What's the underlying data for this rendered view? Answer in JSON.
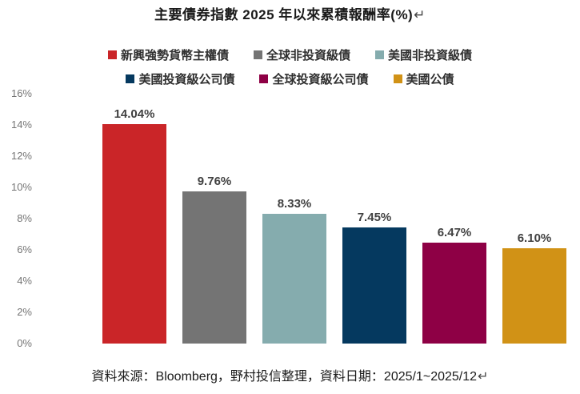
{
  "title": "主要債券指數 2025 年以來累積報酬率(%)",
  "title_return_mark": "↵",
  "footer": "資料來源：Bloomberg，野村投信整理，資料日期：2025/1~2025/12",
  "footer_return_mark": "↵",
  "chart_data": {
    "type": "bar",
    "title": "主要債券指數 2025 年以來累積報酬率(%)",
    "categories": [
      "新興強勢貨幣主權債",
      "全球非投資級債",
      "美國非投資級債",
      "美國投資級公司債",
      "全球投資級公司債",
      "美國公債"
    ],
    "values": [
      14.04,
      9.76,
      8.33,
      7.45,
      6.47,
      6.1
    ],
    "value_labels": [
      "14.04%",
      "9.76%",
      "8.33%",
      "7.45%",
      "6.47%",
      "6.10%"
    ],
    "colors": [
      "#CA2528",
      "#747474",
      "#85ACAE",
      "#05395F",
      "#8E0045",
      "#D19216"
    ],
    "xlabel": "",
    "ylabel": "",
    "ylim": [
      0,
      16
    ],
    "y_ticks": [
      "16%",
      "14%",
      "12%",
      "10%",
      "8%",
      "6%",
      "4%",
      "2%",
      "0%"
    ],
    "grid": false,
    "axes_lines": false,
    "legend_position": "top",
    "legend_rows": [
      [
        0,
        1,
        2
      ],
      [
        3,
        4,
        5
      ]
    ],
    "source_note": "資料來源：Bloomberg，野村投信整理，資料日期：2025/1~2025/12"
  },
  "ui_colors": {
    "background": "#FFFFFF",
    "title_text": "#1A1A1A",
    "legend_text": "#303030",
    "axis_label_text": "#757575",
    "data_label_text": "#404040",
    "footer_text": "#1A1A1A"
  }
}
